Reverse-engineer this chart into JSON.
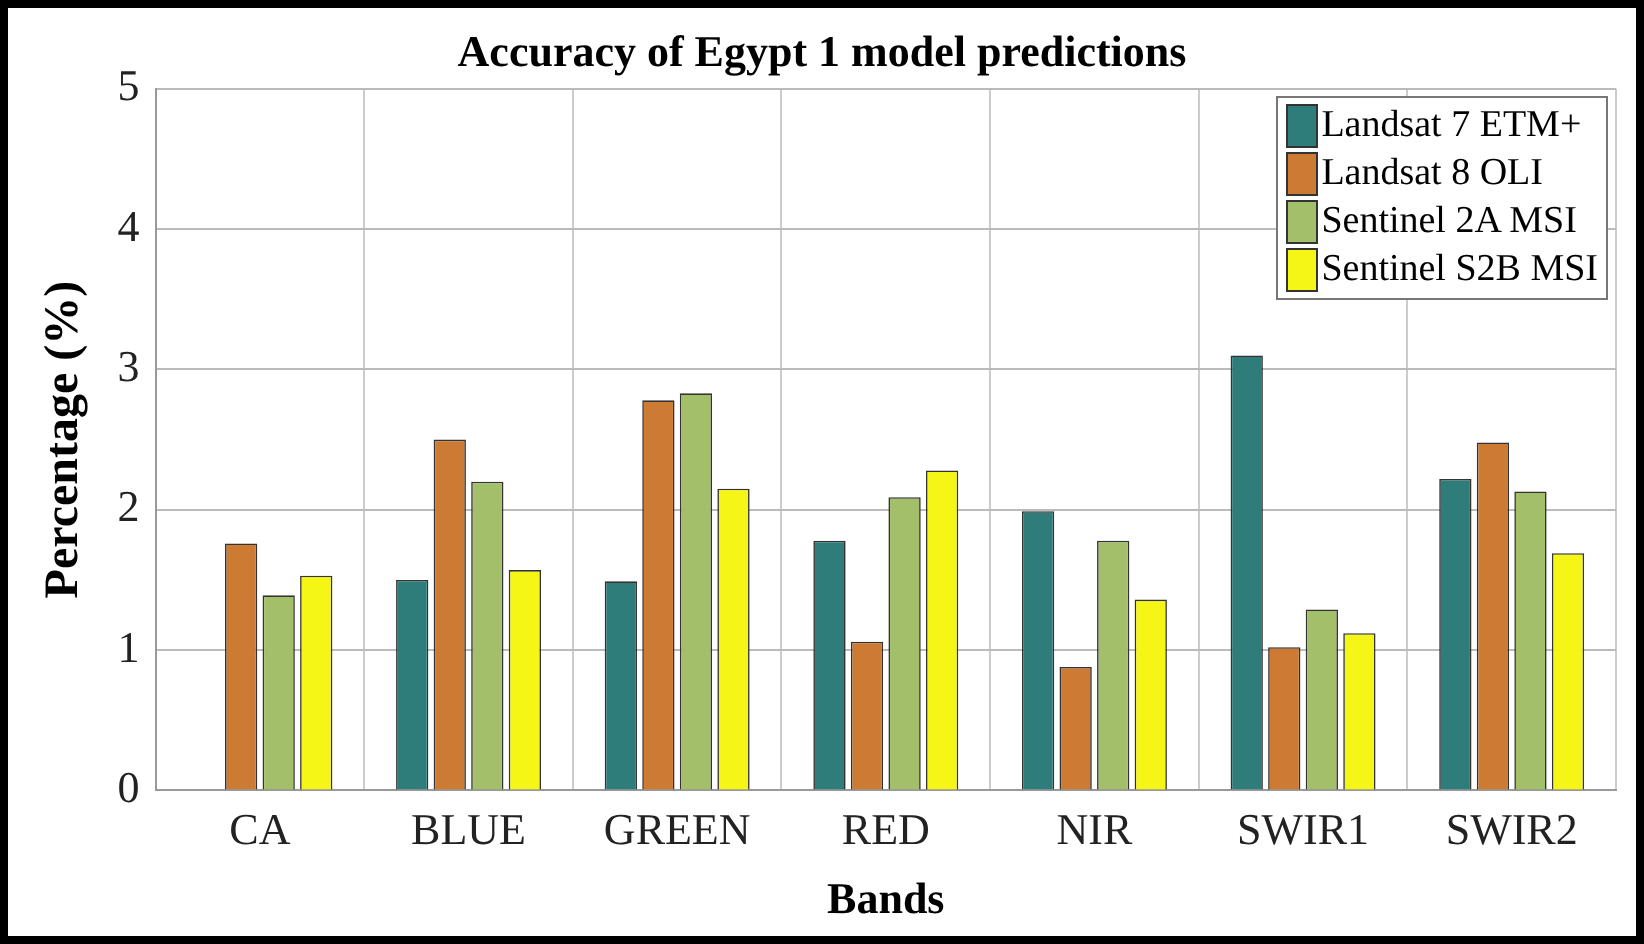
{
  "chart_data": {
    "type": "bar",
    "title": "Accuracy of Egypt 1 model predictions",
    "xlabel": "Bands",
    "ylabel": "Percentage (%)",
    "categories": [
      "CA",
      "BLUE",
      "GREEN",
      "RED",
      "NIR",
      "SWIR1",
      "SWIR2"
    ],
    "series": [
      {
        "name": "Landsat 7 ETM+",
        "color": "#2e7d7b",
        "values": [
          null,
          1.5,
          1.49,
          1.78,
          1.99,
          3.1,
          2.22
        ]
      },
      {
        "name": "Landsat 8 OLI",
        "color": "#cd7a32",
        "values": [
          1.76,
          2.5,
          2.78,
          1.06,
          0.88,
          1.02,
          2.48
        ]
      },
      {
        "name": "Sentinel 2A MSI",
        "color": "#a3bf6a",
        "values": [
          1.39,
          2.2,
          2.83,
          2.09,
          1.78,
          1.29,
          2.13
        ]
      },
      {
        "name": "Sentinel S2B MSI",
        "color": "#f5f516",
        "values": [
          1.53,
          1.57,
          2.15,
          2.28,
          1.36,
          1.12,
          1.69
        ]
      }
    ],
    "ylim": [
      0,
      5
    ],
    "yticks": [
      0,
      1,
      2,
      3,
      4,
      5
    ],
    "grid": true,
    "legend": "top right"
  }
}
